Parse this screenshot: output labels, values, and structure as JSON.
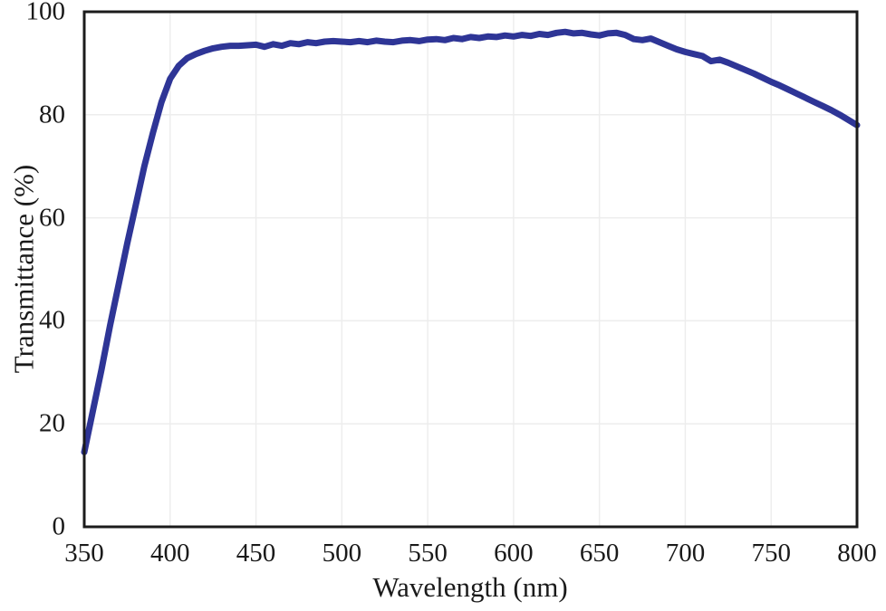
{
  "figure": {
    "background": "#ffffff"
  },
  "colors": {
    "line": "#2e3596",
    "axis_border": "#1b1b1b",
    "grid": "#ededed",
    "text": "#1a1a1a"
  },
  "chart_data": {
    "type": "line",
    "title": "",
    "xlabel": "Wavelength (nm)",
    "ylabel": "Transmittance (%)",
    "xlim": [
      350,
      800
    ],
    "ylim": [
      0,
      100
    ],
    "xticks": [
      350,
      400,
      450,
      500,
      550,
      600,
      650,
      700,
      750,
      800
    ],
    "yticks": [
      0,
      20,
      40,
      60,
      80,
      100
    ],
    "grid": true,
    "legend_position": "none",
    "series": [
      {
        "name": "Transmittance",
        "color": "#2e3596",
        "x": [
          350,
          355,
          360,
          365,
          370,
          375,
          380,
          385,
          390,
          395,
          400,
          405,
          410,
          415,
          420,
          425,
          430,
          435,
          440,
          445,
          450,
          455,
          460,
          465,
          470,
          475,
          480,
          485,
          490,
          495,
          500,
          505,
          510,
          515,
          520,
          525,
          530,
          535,
          540,
          545,
          550,
          555,
          560,
          565,
          570,
          575,
          580,
          585,
          590,
          595,
          600,
          605,
          610,
          615,
          620,
          625,
          630,
          635,
          640,
          645,
          650,
          655,
          660,
          665,
          670,
          675,
          680,
          685,
          690,
          695,
          700,
          705,
          710,
          715,
          720,
          725,
          730,
          735,
          740,
          745,
          750,
          755,
          760,
          765,
          770,
          775,
          780,
          785,
          790,
          795,
          800
        ],
        "values": [
          14.5,
          22.5,
          30.5,
          39,
          47,
          55,
          62.5,
          70,
          76.5,
          82.5,
          87,
          89.5,
          91,
          91.8,
          92.4,
          92.9,
          93.2,
          93.4,
          93.4,
          93.5,
          93.6,
          93.2,
          93.7,
          93.4,
          93.9,
          93.7,
          94.1,
          93.9,
          94.2,
          94.3,
          94.2,
          94.1,
          94.3,
          94.1,
          94.4,
          94.2,
          94.1,
          94.4,
          94.5,
          94.3,
          94.6,
          94.7,
          94.5,
          94.9,
          94.7,
          95.1,
          94.9,
          95.2,
          95.1,
          95.4,
          95.2,
          95.5,
          95.3,
          95.7,
          95.5,
          95.9,
          96.1,
          95.8,
          95.9,
          95.6,
          95.4,
          95.8,
          95.9,
          95.5,
          94.7,
          94.5,
          94.8,
          94.1,
          93.4,
          92.7,
          92.2,
          91.8,
          91.4,
          90.4,
          90.7,
          90.1,
          89.4,
          88.7,
          88.0,
          87.2,
          86.4,
          85.7,
          84.9,
          84.1,
          83.3,
          82.5,
          81.7,
          80.9,
          80.0,
          79.0,
          78.0
        ]
      }
    ]
  }
}
